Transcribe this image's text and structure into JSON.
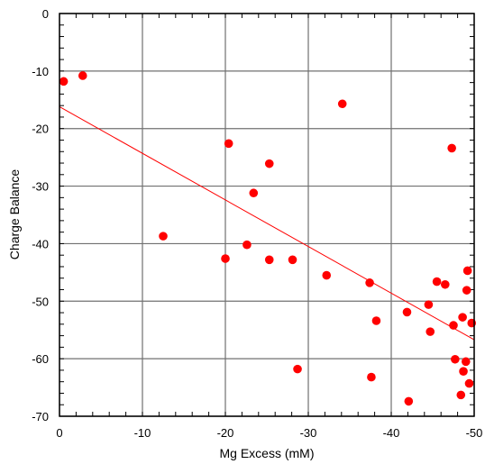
{
  "chart_data": {
    "type": "scatter",
    "xlabel": "Mg  Excess (mM)",
    "ylabel": "Charge Balance",
    "xlim": [
      0,
      -50
    ],
    "ylim": [
      -70,
      0
    ],
    "x_ticks": [
      0,
      -10,
      -20,
      -30,
      -40,
      -50
    ],
    "x_tick_labels": [
      "0",
      "-10",
      "-20",
      "-30",
      "-40",
      "-50"
    ],
    "y_ticks": [
      0,
      -10,
      -20,
      -30,
      -40,
      -50,
      -60,
      -70
    ],
    "y_tick_labels": [
      "0",
      "-10",
      "-20",
      "-30",
      "-40",
      "-50",
      "-60",
      "-70"
    ],
    "grid": true,
    "series": [
      {
        "color": "#ff0000",
        "points": [
          {
            "x": -0.5,
            "y": -11.8
          },
          {
            "x": -2.8,
            "y": -10.8
          },
          {
            "x": -12.5,
            "y": -38.7
          },
          {
            "x": -20.0,
            "y": -42.6
          },
          {
            "x": -20.4,
            "y": -22.6
          },
          {
            "x": -22.6,
            "y": -40.2
          },
          {
            "x": -23.4,
            "y": -31.2
          },
          {
            "x": -25.3,
            "y": -26.1
          },
          {
            "x": -25.3,
            "y": -42.8
          },
          {
            "x": -28.1,
            "y": -42.8
          },
          {
            "x": -28.7,
            "y": -61.8
          },
          {
            "x": -32.2,
            "y": -45.5
          },
          {
            "x": -34.1,
            "y": -15.7
          },
          {
            "x": -37.4,
            "y": -46.8
          },
          {
            "x": -37.6,
            "y": -63.2
          },
          {
            "x": -38.2,
            "y": -53.4
          },
          {
            "x": -41.9,
            "y": -51.9
          },
          {
            "x": -42.1,
            "y": -67.4
          },
          {
            "x": -44.5,
            "y": -50.6
          },
          {
            "x": -44.7,
            "y": -55.3
          },
          {
            "x": -45.5,
            "y": -46.6
          },
          {
            "x": -46.5,
            "y": -47.1
          },
          {
            "x": -47.3,
            "y": -23.4
          },
          {
            "x": -47.5,
            "y": -54.2
          },
          {
            "x": -47.7,
            "y": -60.1
          },
          {
            "x": -48.4,
            "y": -66.3
          },
          {
            "x": -48.6,
            "y": -52.8
          },
          {
            "x": -48.7,
            "y": -62.2
          },
          {
            "x": -49.0,
            "y": -60.5
          },
          {
            "x": -49.1,
            "y": -48.1
          },
          {
            "x": -49.2,
            "y": -44.7
          },
          {
            "x": -49.4,
            "y": -64.3
          },
          {
            "x": -49.7,
            "y": -53.8
          }
        ]
      }
    ],
    "fit_line": {
      "color": "#ff0000",
      "x": [
        0,
        -50
      ],
      "y": [
        -16.2,
        -56.7
      ]
    }
  }
}
